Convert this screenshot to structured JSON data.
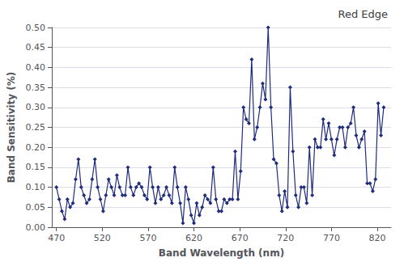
{
  "chart_data": {
    "type": "line",
    "title": "Red Edge",
    "xlabel": "Band Wavelength (nm)",
    "ylabel": "Band Sensitivity (%)",
    "x": [
      470,
      473,
      476,
      479,
      482,
      485,
      488,
      491,
      494,
      497,
      500,
      503,
      506,
      509,
      512,
      515,
      518,
      521,
      524,
      527,
      530,
      533,
      536,
      539,
      542,
      545,
      548,
      551,
      554,
      557,
      560,
      563,
      566,
      569,
      572,
      575,
      578,
      581,
      584,
      587,
      590,
      593,
      596,
      599,
      602,
      605,
      608,
      611,
      614,
      617,
      620,
      623,
      626,
      629,
      632,
      635,
      638,
      641,
      644,
      647,
      650,
      653,
      656,
      659,
      662,
      665,
      668,
      671,
      674,
      677,
      680,
      683,
      686,
      689,
      692,
      695,
      698,
      701,
      704,
      707,
      710,
      713,
      716,
      719,
      722,
      725,
      728,
      731,
      734,
      737,
      740,
      743,
      746,
      749,
      752,
      755,
      758,
      761,
      764,
      767,
      770,
      773,
      776,
      779,
      782,
      785,
      788,
      791,
      794,
      797,
      800,
      803,
      806,
      809,
      812,
      815,
      818,
      821,
      824,
      827
    ],
    "values": [
      0.1,
      0.07,
      0.04,
      0.02,
      0.07,
      0.05,
      0.06,
      0.12,
      0.17,
      0.1,
      0.08,
      0.06,
      0.07,
      0.12,
      0.17,
      0.1,
      0.07,
      0.04,
      0.08,
      0.12,
      0.1,
      0.08,
      0.13,
      0.1,
      0.08,
      0.08,
      0.15,
      0.1,
      0.08,
      0.1,
      0.11,
      0.1,
      0.08,
      0.07,
      0.15,
      0.1,
      0.06,
      0.1,
      0.07,
      0.08,
      0.1,
      0.08,
      0.06,
      0.15,
      0.1,
      0.06,
      0.01,
      0.1,
      0.07,
      0.03,
      0.01,
      0.06,
      0.03,
      0.05,
      0.08,
      0.07,
      0.06,
      0.15,
      0.07,
      0.04,
      0.04,
      0.07,
      0.06,
      0.07,
      0.07,
      0.19,
      0.07,
      0.14,
      0.3,
      0.27,
      0.26,
      0.42,
      0.22,
      0.25,
      0.3,
      0.36,
      0.32,
      0.5,
      0.3,
      0.17,
      0.16,
      0.08,
      0.04,
      0.09,
      0.05,
      0.35,
      0.19,
      0.08,
      0.05,
      0.1,
      0.1,
      0.06,
      0.2,
      0.08,
      0.22,
      0.2,
      0.2,
      0.27,
      0.22,
      0.26,
      0.22,
      0.18,
      0.22,
      0.25,
      0.25,
      0.2,
      0.25,
      0.26,
      0.3,
      0.23,
      0.2,
      0.22,
      0.24,
      0.11,
      0.11,
      0.09,
      0.12,
      0.31,
      0.23,
      0.3
    ],
    "xlim": [
      465,
      835
    ],
    "ylim": [
      0.0,
      0.5
    ],
    "xticks": [
      470,
      520,
      570,
      620,
      670,
      720,
      770,
      820
    ],
    "yticks": [
      {
        "value": 0.0,
        "label": "0.00"
      },
      {
        "value": 0.05,
        "label": "0.05"
      },
      {
        "value": 0.1,
        "label": "0.10"
      },
      {
        "value": 0.15,
        "label": "0.15"
      },
      {
        "value": 0.2,
        "label": "0.20"
      },
      {
        "value": 0.25,
        "label": "0.25"
      },
      {
        "value": 0.3,
        "label": "0.30"
      },
      {
        "value": 0.35,
        "label": "0.35"
      },
      {
        "value": 0.4,
        "label": "0.40"
      },
      {
        "value": 0.45,
        "label": "0.45"
      },
      {
        "value": 0.5,
        "label": "0.50"
      }
    ],
    "color": "#1F2B7B",
    "marker": "diamond",
    "grid": true
  }
}
